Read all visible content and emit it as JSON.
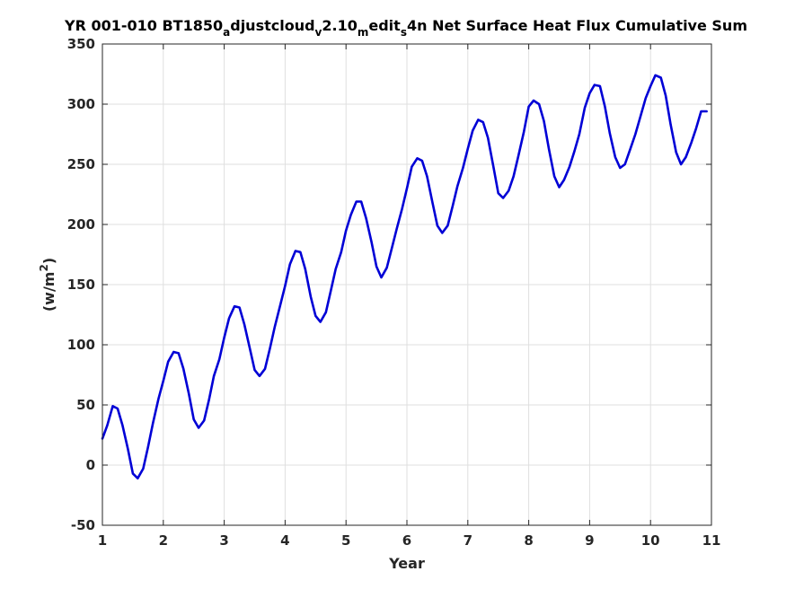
{
  "chart_data": {
    "type": "line",
    "title": {
      "parts": [
        {
          "text": "YR 001-010 BT1850",
          "sub": false
        },
        {
          "text": "a",
          "sub": true
        },
        {
          "text": "djustcloud",
          "sub": false
        },
        {
          "text": "v",
          "sub": true
        },
        {
          "text": "2.10",
          "sub": false
        },
        {
          "text": "m",
          "sub": true
        },
        {
          "text": "edit",
          "sub": false
        },
        {
          "text": "s",
          "sub": true
        },
        {
          "text": "4n Net Surface Heat Flux  Cumulative Sum",
          "sub": false
        }
      ]
    },
    "xlabel": "Year",
    "ylabel": {
      "base": "(w/m",
      "sup": "2",
      "close": ")"
    },
    "xlim": [
      1,
      11
    ],
    "ylim": [
      -50,
      350
    ],
    "xticks": [
      1,
      2,
      3,
      4,
      5,
      6,
      7,
      8,
      9,
      10,
      11
    ],
    "yticks": [
      -50,
      0,
      50,
      100,
      150,
      200,
      250,
      300,
      350
    ],
    "grid": true,
    "line_color": "#0000d6",
    "series": [
      {
        "x": [
          1.0,
          1.08,
          1.17,
          1.25,
          1.33,
          1.42,
          1.5,
          1.58,
          1.67,
          1.75,
          1.83,
          1.92,
          2.0,
          2.08,
          2.17,
          2.25,
          2.33,
          2.42,
          2.5,
          2.58,
          2.67,
          2.75,
          2.83,
          2.92,
          3.0,
          3.08,
          3.17,
          3.25,
          3.33,
          3.42,
          3.5,
          3.58,
          3.67,
          3.75,
          3.83,
          3.92,
          4.0,
          4.08,
          4.17,
          4.25,
          4.33,
          4.42,
          4.5,
          4.58,
          4.67,
          4.75,
          4.83,
          4.92,
          5.0,
          5.08,
          5.17,
          5.25,
          5.33,
          5.42,
          5.5,
          5.58,
          5.67,
          5.75,
          5.83,
          5.92,
          6.0,
          6.08,
          6.17,
          6.25,
          6.33,
          6.42,
          6.5,
          6.58,
          6.67,
          6.75,
          6.83,
          6.92,
          7.0,
          7.08,
          7.17,
          7.25,
          7.33,
          7.42,
          7.5,
          7.58,
          7.67,
          7.75,
          7.83,
          7.92,
          8.0,
          8.08,
          8.17,
          8.25,
          8.33,
          8.42,
          8.5,
          8.58,
          8.67,
          8.75,
          8.83,
          8.92,
          9.0,
          9.08,
          9.17,
          9.25,
          9.33,
          9.42,
          9.5,
          9.58,
          9.67,
          9.75,
          9.83,
          9.92,
          10.0,
          10.08,
          10.17,
          10.25,
          10.33,
          10.42,
          10.5,
          10.58,
          10.67,
          10.75,
          10.83,
          10.92
        ],
        "y": [
          22,
          33,
          49,
          47,
          33,
          13,
          -7,
          -11,
          -3,
          15,
          35,
          55,
          70,
          86,
          94,
          93,
          80,
          59,
          38,
          31,
          37,
          54,
          74,
          88,
          106,
          122,
          132,
          131,
          117,
          97,
          79,
          74,
          80,
          97,
          115,
          133,
          149,
          167,
          178,
          177,
          163,
          140,
          124,
          119,
          127,
          145,
          163,
          177,
          195,
          208,
          219,
          219,
          205,
          185,
          165,
          156,
          164,
          180,
          196,
          213,
          230,
          248,
          255,
          253,
          240,
          218,
          199,
          193,
          199,
          215,
          232,
          247,
          263,
          278,
          287,
          285,
          272,
          248,
          226,
          222,
          228,
          240,
          257,
          277,
          298,
          303,
          300,
          286,
          263,
          240,
          231,
          237,
          248,
          261,
          275,
          297,
          309,
          316,
          315,
          298,
          276,
          256,
          247,
          250,
          263,
          275,
          289,
          305,
          315,
          324,
          322,
          307,
          283,
          260,
          250,
          256,
          268,
          280,
          294,
          294
        ]
      }
    ]
  }
}
